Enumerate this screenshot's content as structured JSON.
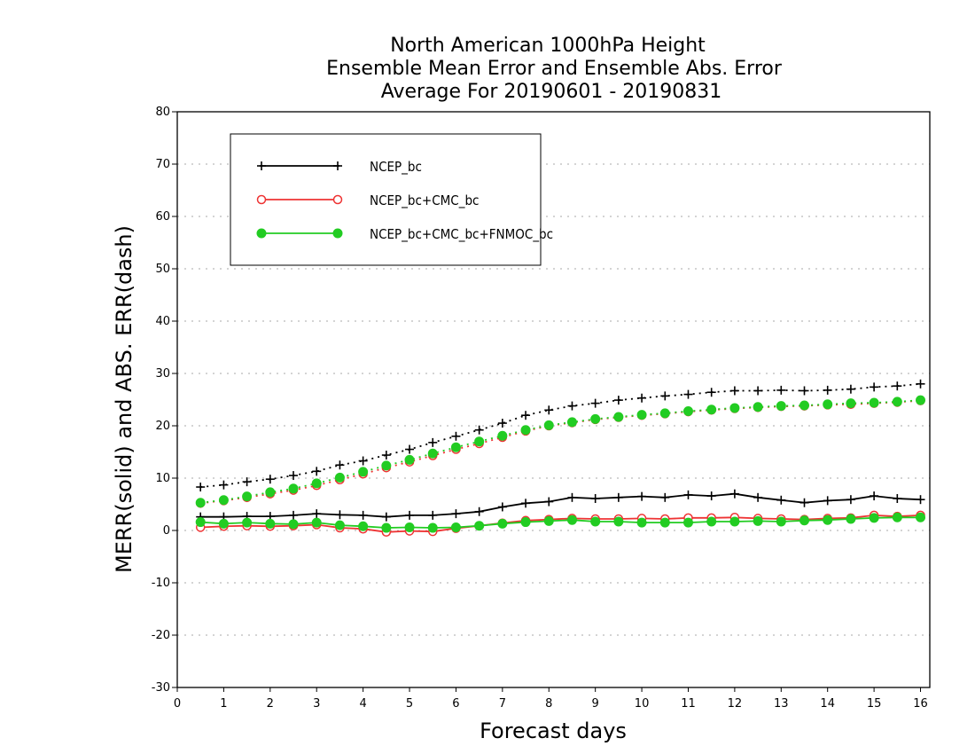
{
  "chart_data": {
    "type": "line",
    "title_lines": [
      "North American 1000hPa Height",
      "Ensemble Mean Error and Ensemble Abs. Error",
      "Average For 20190601 - 20190831"
    ],
    "xlabel": "Forecast days",
    "ylabel": "MERR(solid) and ABS. ERR(dash)",
    "xlim": [
      0,
      16.2
    ],
    "ylim": [
      -30,
      80
    ],
    "xticks": [
      0,
      1,
      2,
      3,
      4,
      5,
      6,
      7,
      8,
      9,
      10,
      11,
      12,
      13,
      14,
      15,
      16
    ],
    "yticks": [
      -30,
      -20,
      -10,
      0,
      10,
      20,
      30,
      40,
      50,
      60,
      70,
      80
    ],
    "grid": "horizontal dotted",
    "legend_position": "upper-left",
    "x": [
      0.5,
      1,
      1.5,
      2,
      2.5,
      3,
      3.5,
      4,
      4.5,
      5,
      5.5,
      6,
      6.5,
      7,
      7.5,
      8,
      8.5,
      9,
      9.5,
      10,
      10.5,
      11,
      11.5,
      12,
      12.5,
      13,
      13.5,
      14,
      14.5,
      15,
      15.5,
      16
    ],
    "series": [
      {
        "name": "NCEP_bc",
        "color": "#000000",
        "marker": "plus",
        "merr": [
          2.6,
          2.6,
          2.7,
          2.7,
          2.9,
          3.2,
          3.0,
          2.9,
          2.6,
          2.9,
          2.9,
          3.2,
          3.6,
          4.5,
          5.2,
          5.5,
          6.3,
          6.1,
          6.3,
          6.5,
          6.3,
          6.8,
          6.6,
          7.0,
          6.3,
          5.8,
          5.3,
          5.7,
          5.9,
          6.6,
          6.1,
          5.9
        ],
        "abs_err": [
          8.3,
          8.7,
          9.3,
          9.8,
          10.5,
          11.3,
          12.5,
          13.3,
          14.4,
          15.5,
          16.8,
          18.0,
          19.2,
          20.5,
          22.0,
          23.0,
          23.8,
          24.3,
          24.9,
          25.3,
          25.7,
          26.0,
          26.4,
          26.7,
          26.7,
          26.8,
          26.7,
          26.8,
          27.0,
          27.4,
          27.6,
          28.0
        ]
      },
      {
        "name": "NCEP_bc+CMC_bc",
        "color": "#ee3333",
        "marker": "open-circle",
        "merr": [
          0.6,
          0.8,
          0.9,
          0.8,
          0.9,
          1.1,
          0.5,
          0.3,
          -0.3,
          -0.1,
          -0.2,
          0.4,
          0.9,
          1.4,
          1.9,
          2.1,
          2.3,
          2.2,
          2.2,
          2.3,
          2.2,
          2.4,
          2.4,
          2.5,
          2.3,
          2.2,
          2.1,
          2.3,
          2.4,
          2.9,
          2.7,
          2.9
        ],
        "abs_err": [
          5.2,
          5.7,
          6.3,
          7.0,
          7.7,
          8.6,
          9.7,
          10.8,
          12.0,
          13.1,
          14.3,
          15.5,
          16.6,
          17.8,
          19.0,
          20.0,
          20.6,
          21.2,
          21.6,
          22.0,
          22.3,
          22.7,
          23.0,
          23.3,
          23.5,
          23.7,
          23.8,
          24.0,
          24.1,
          24.3,
          24.5,
          24.8
        ]
      },
      {
        "name": "NCEP_bc+CMC_bc+FNMOC_bc",
        "color": "#22cc22",
        "marker": "filled-circle",
        "merr": [
          1.6,
          1.3,
          1.5,
          1.3,
          1.2,
          1.5,
          1.0,
          0.8,
          0.5,
          0.6,
          0.5,
          0.6,
          0.9,
          1.3,
          1.6,
          1.8,
          2.0,
          1.7,
          1.7,
          1.5,
          1.5,
          1.5,
          1.7,
          1.7,
          1.8,
          1.7,
          1.9,
          2.0,
          2.2,
          2.4,
          2.5,
          2.5
        ],
        "abs_err": [
          5.3,
          5.8,
          6.5,
          7.3,
          8.0,
          9.0,
          10.1,
          11.2,
          12.4,
          13.5,
          14.7,
          15.9,
          17.0,
          18.1,
          19.2,
          20.1,
          20.7,
          21.3,
          21.7,
          22.1,
          22.4,
          22.8,
          23.1,
          23.4,
          23.6,
          23.8,
          23.9,
          24.1,
          24.3,
          24.4,
          24.6,
          24.9
        ]
      }
    ]
  }
}
